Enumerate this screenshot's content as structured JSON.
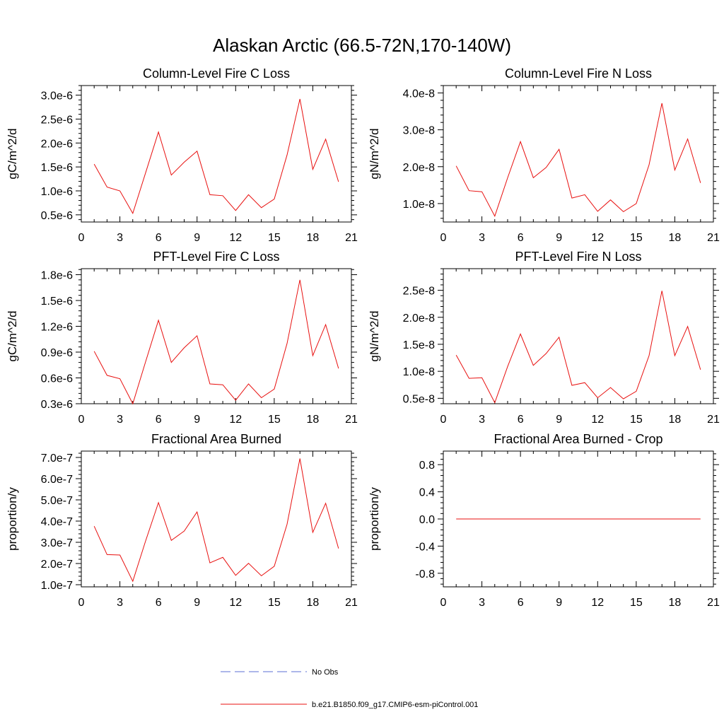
{
  "figure": {
    "title": "Alaskan Arctic (66.5-72N,170-140W)"
  },
  "legend": [
    {
      "label": "No Obs",
      "color": "#5b6fd6",
      "style": "dashed"
    },
    {
      "label": "b.e21.B1850.f09_g17.CMIP6-esm-piControl.001",
      "color": "#e8100f",
      "style": "solid"
    }
  ],
  "chart_data": [
    {
      "type": "line",
      "title": "Column-Level Fire C Loss",
      "xlabel": "",
      "ylabel": "gC/m^2/d",
      "xlim": [
        0,
        21
      ],
      "ylim": [
        3.5e-07,
        3.2e-06
      ],
      "xticks": [
        0,
        3,
        6,
        9,
        12,
        15,
        18,
        21
      ],
      "yticks": [
        5e-07,
        1e-06,
        1.5e-06,
        2e-06,
        2.5e-06,
        3e-06
      ],
      "ytick_labels": [
        "0.5e-6",
        "1.0e-6",
        "1.5e-6",
        "2.0e-6",
        "2.5e-6",
        "3.0e-6"
      ],
      "series": [
        {
          "color": "#e8100f",
          "x": [
            1,
            2,
            3,
            4,
            5,
            6,
            7,
            8,
            9,
            10,
            11,
            12,
            13,
            14,
            15,
            16,
            17,
            18,
            19,
            20
          ],
          "values": [
            1.56e-06,
            1.08e-06,
            1e-06,
            5.3e-07,
            1.38e-06,
            2.23e-06,
            1.33e-06,
            1.6e-06,
            1.83e-06,
            9.2e-07,
            9e-07,
            5.9e-07,
            9.2e-07,
            6.5e-07,
            8.3e-07,
            1.75e-06,
            2.92e-06,
            1.45e-06,
            2.08e-06,
            1.19e-06
          ]
        }
      ]
    },
    {
      "type": "line",
      "title": "Column-Level Fire N Loss",
      "xlabel": "",
      "ylabel": "gN/m^2/d",
      "xlim": [
        0,
        21
      ],
      "ylim": [
        5e-09,
        4.2e-08
      ],
      "xticks": [
        0,
        3,
        6,
        9,
        12,
        15,
        18,
        21
      ],
      "yticks": [
        1e-08,
        2e-08,
        3e-08,
        4e-08
      ],
      "ytick_labels": [
        "1.0e-8",
        "2.0e-8",
        "3.0e-8",
        "4.0e-8"
      ],
      "series": [
        {
          "color": "#e8100f",
          "x": [
            1,
            2,
            3,
            4,
            5,
            6,
            7,
            8,
            9,
            10,
            11,
            12,
            13,
            14,
            15,
            16,
            17,
            18,
            19,
            20
          ],
          "values": [
            2.02e-08,
            1.35e-08,
            1.32e-08,
            6.6e-09,
            1.7e-08,
            2.68e-08,
            1.7e-08,
            1.98e-08,
            2.47e-08,
            1.15e-08,
            1.24e-08,
            7.9e-09,
            1.1e-08,
            7.8e-09,
            1e-08,
            2.05e-08,
            3.72e-08,
            1.91e-08,
            2.75e-08,
            1.56e-08
          ]
        }
      ]
    },
    {
      "type": "line",
      "title": "PFT-Level Fire C Loss",
      "xlabel": "",
      "ylabel": "gC/m^2/d",
      "xlim": [
        0,
        21
      ],
      "ylim": [
        3e-07,
        1.87e-06
      ],
      "xticks": [
        0,
        3,
        6,
        9,
        12,
        15,
        18,
        21
      ],
      "yticks": [
        3e-07,
        6e-07,
        9e-07,
        1.2e-06,
        1.5e-06,
        1.8e-06
      ],
      "ytick_labels": [
        "0.3e-6",
        "0.6e-6",
        "0.9e-6",
        "1.2e-6",
        "1.5e-6",
        "1.8e-6"
      ],
      "series": [
        {
          "color": "#e8100f",
          "x": [
            1,
            2,
            3,
            4,
            5,
            6,
            7,
            8,
            9,
            10,
            11,
            12,
            13,
            14,
            15,
            16,
            17,
            18,
            19,
            20
          ],
          "values": [
            9.1e-07,
            6.3e-07,
            5.9e-07,
            3e-07,
            7.9e-07,
            1.27e-06,
            7.8e-07,
            9.5e-07,
            1.09e-06,
            5.3e-07,
            5.2e-07,
            3.4e-07,
            5.3e-07,
            3.7e-07,
            4.7e-07,
            1e-06,
            1.74e-06,
            8.6e-07,
            1.22e-06,
            7.1e-07
          ]
        }
      ]
    },
    {
      "type": "line",
      "title": "PFT-Level Fire N Loss",
      "xlabel": "",
      "ylabel": "gN/m^2/d",
      "xlim": [
        0,
        21
      ],
      "ylim": [
        4e-09,
        2.9e-08
      ],
      "xticks": [
        0,
        3,
        6,
        9,
        12,
        15,
        18,
        21
      ],
      "yticks": [
        5e-09,
        1e-08,
        1.5e-08,
        2e-08,
        2.5e-08
      ],
      "ytick_labels": [
        "0.5e-8",
        "1.0e-8",
        "1.5e-8",
        "2.0e-8",
        "2.5e-8"
      ],
      "series": [
        {
          "color": "#e8100f",
          "x": [
            1,
            2,
            3,
            4,
            5,
            6,
            7,
            8,
            9,
            10,
            11,
            12,
            13,
            14,
            15,
            16,
            17,
            18,
            19,
            20
          ],
          "values": [
            1.3e-08,
            8.7e-09,
            8.8e-09,
            4.2e-09,
            1.09e-08,
            1.69e-08,
            1.11e-08,
            1.33e-08,
            1.63e-08,
            7.4e-09,
            7.9e-09,
            5.1e-09,
            7e-09,
            4.9e-09,
            6.3e-09,
            1.29e-08,
            2.49e-08,
            1.29e-08,
            1.83e-08,
            1.03e-08
          ]
        }
      ]
    },
    {
      "type": "line",
      "title": "Fractional Area Burned",
      "xlabel": "",
      "ylabel": "proportion/y",
      "xlim": [
        0,
        21
      ],
      "ylim": [
        9e-08,
        7.3e-07
      ],
      "xticks": [
        0,
        3,
        6,
        9,
        12,
        15,
        18,
        21
      ],
      "yticks": [
        1e-07,
        2e-07,
        3e-07,
        4e-07,
        5e-07,
        6e-07,
        7e-07
      ],
      "ytick_labels": [
        "1.0e-7",
        "2.0e-7",
        "3.0e-7",
        "4.0e-7",
        "5.0e-7",
        "6.0e-7",
        "7.0e-7"
      ],
      "series": [
        {
          "color": "#e8100f",
          "x": [
            1,
            2,
            3,
            4,
            5,
            6,
            7,
            8,
            9,
            10,
            11,
            12,
            13,
            14,
            15,
            16,
            17,
            18,
            19,
            20
          ],
          "values": [
            3.76e-07,
            2.42e-07,
            2.4e-07,
            1.16e-07,
            3.07e-07,
            4.87e-07,
            3.09e-07,
            3.53e-07,
            4.43e-07,
            2.03e-07,
            2.29e-07,
            1.44e-07,
            2.01e-07,
            1.42e-07,
            1.87e-07,
            3.85e-07,
            6.95e-07,
            3.47e-07,
            4.84e-07,
            2.71e-07
          ]
        }
      ]
    },
    {
      "type": "line",
      "title": "Fractional Area Burned - Crop",
      "xlabel": "",
      "ylabel": "proportion/y",
      "xlim": [
        0,
        21
      ],
      "ylim": [
        -1.0,
        1.0
      ],
      "xticks": [
        0,
        3,
        6,
        9,
        12,
        15,
        18,
        21
      ],
      "yticks": [
        -0.8,
        -0.4,
        0.0,
        0.4,
        0.8
      ],
      "ytick_labels": [
        "-0.8",
        "-0.4",
        "0.0",
        "0.4",
        "0.8"
      ],
      "series": [
        {
          "color": "#e8100f",
          "x": [
            1,
            2,
            3,
            4,
            5,
            6,
            7,
            8,
            9,
            10,
            11,
            12,
            13,
            14,
            15,
            16,
            17,
            18,
            19,
            20
          ],
          "values": [
            0,
            0,
            0,
            0,
            0,
            0,
            0,
            0,
            0,
            0,
            0,
            0,
            0,
            0,
            0,
            0,
            0,
            0,
            0,
            0
          ]
        }
      ]
    }
  ]
}
